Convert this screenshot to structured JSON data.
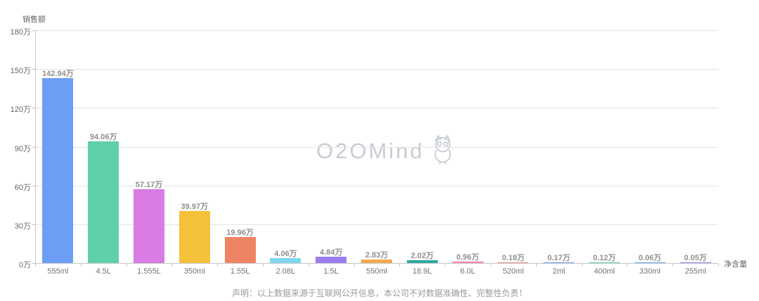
{
  "chart_data": {
    "type": "bar",
    "title": "销售额",
    "ylabel": "销售额",
    "xlabel": "净含量",
    "ymax": 180,
    "grid": true,
    "y_ticks": [
      "180万",
      "150万",
      "120万",
      "90万",
      "60万",
      "30万",
      "0万"
    ],
    "categories": [
      "555ml",
      "4.5L",
      "1.555L",
      "350ml",
      "1.55L",
      "2.08L",
      "1.5L",
      "550ml",
      "18.9L",
      "6.0L",
      "520ml",
      "2ml",
      "400ml",
      "330ml",
      "255ml"
    ],
    "values": [
      142.94,
      94.06,
      57.17,
      39.97,
      19.96,
      4.06,
      4.84,
      2.83,
      2.02,
      0.96,
      0.18,
      0.17,
      0.12,
      0.06,
      0.05
    ],
    "value_labels": [
      "142.94万",
      "94.06万",
      "57.17万",
      "39.97万",
      "19.96万",
      "4.06万",
      "4.84万",
      "2.83万",
      "2.02万",
      "0.96万",
      "0.18万",
      "0.17万",
      "0.12万",
      "0.06万",
      "0.05万"
    ],
    "bar_colors": [
      "#6d9ef5",
      "#5fd0a7",
      "#d97ce4",
      "#f6c13a",
      "#ef8465",
      "#7ed6ef",
      "#9b7df0",
      "#f2a94e",
      "#2ba8a0",
      "#f77fae",
      "#f08a8a",
      "#6d9ef5",
      "#5fd0a7",
      "#6da3f5",
      "#9b7df0"
    ],
    "legend": null
  },
  "watermark": {
    "text": "O2OMind",
    "icon": "owl-icon",
    "color": "#c7ccd4"
  },
  "footer": {
    "disclaimer": "声明：以上数据来源于互联网公开信息，本公司不对数据准确性、完整性负责！"
  },
  "colors": {
    "background": "#ffffff",
    "gridline": "#e4e4e4",
    "axis": "#c6c6c6",
    "tick_text": "#666666",
    "value_label": "#8f8f8f"
  }
}
